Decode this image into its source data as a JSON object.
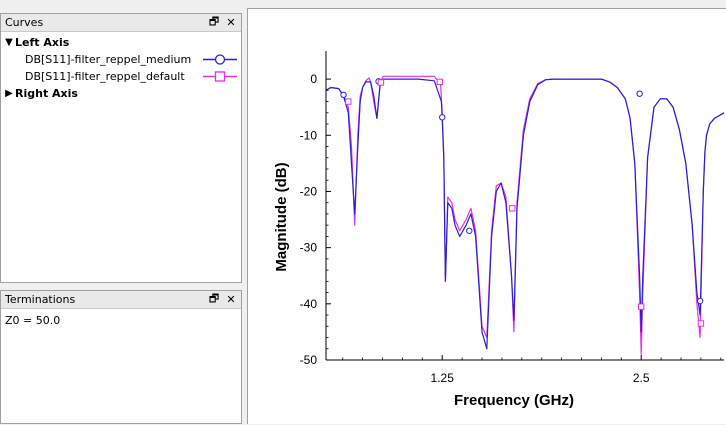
{
  "curves_panel": {
    "title": "Curves",
    "groups": [
      {
        "label": "Left Axis",
        "items": [
          {
            "label": "DB[S11]-filter_reppel_medium",
            "color": "#2a1fd0",
            "marker": "circle"
          },
          {
            "label": "DB[S11]-filter_reppel_default",
            "color": "#e030e0",
            "marker": "square"
          }
        ]
      },
      {
        "label": "Right Axis",
        "items": []
      }
    ]
  },
  "terminations_panel": {
    "title": "Terminations",
    "text": "Z0 = 50.0"
  },
  "icons": {
    "restore": "restore-window-icon",
    "close": "close-icon",
    "expand": "expand-arrow-icon"
  },
  "chart_data": {
    "type": "line",
    "xlabel": "Frequency (GHz)",
    "ylabel": "Magnitude (dB)",
    "x_ticks": [
      "1.25",
      "2.5"
    ],
    "y_ticks": [
      "0",
      "-10",
      "-20",
      "-30",
      "-40",
      "-50"
    ],
    "xlim": [
      0.52,
      3.02
    ],
    "ylim": [
      -50,
      5
    ],
    "grid": false,
    "series": [
      {
        "name": "DB[S11]-filter_reppel_medium",
        "color": "#2a1fd0",
        "marker": "circle",
        "x": [
          0.52,
          0.55,
          0.6,
          0.63,
          0.66,
          0.68,
          0.7,
          0.72,
          0.735,
          0.75,
          0.77,
          0.8,
          0.82,
          0.84,
          0.86,
          0.87,
          0.88,
          0.895,
          0.92,
          1.0,
          1.1,
          1.2,
          1.245,
          1.25,
          1.26,
          1.27,
          1.285,
          1.31,
          1.33,
          1.36,
          1.4,
          1.43,
          1.46,
          1.5,
          1.53,
          1.56,
          1.59,
          1.62,
          1.65,
          1.685,
          1.7,
          1.72,
          1.76,
          1.8,
          1.85,
          1.9,
          1.95,
          2.0,
          2.05,
          2.1,
          2.15,
          2.2,
          2.25,
          2.3,
          2.35,
          2.4,
          2.43,
          2.46,
          2.49,
          2.5,
          2.51,
          2.54,
          2.58,
          2.62,
          2.66,
          2.7,
          2.74,
          2.78,
          2.82,
          2.85,
          2.87,
          2.89,
          2.9,
          2.91,
          2.93,
          2.96,
          2.99,
          3.02
        ],
        "y": [
          -2,
          -1.5,
          -1.7,
          -3,
          -6,
          -15,
          -24,
          -12,
          -4,
          -1.5,
          -0.5,
          -0.5,
          -3,
          -7,
          -1,
          -0.3,
          0,
          0,
          0,
          0,
          0,
          -0.3,
          -4,
          -7,
          -14,
          -36,
          -22,
          -23,
          -26,
          -28,
          -26,
          -24,
          -28,
          -45,
          -48,
          -28,
          -20,
          -18.5,
          -22,
          -35,
          -43,
          -23,
          -10,
          -4,
          -1,
          -0.1,
          0,
          0,
          0,
          0,
          0,
          0,
          0,
          -0.5,
          -1.5,
          -3.5,
          -7,
          -15,
          -35,
          -45,
          -35,
          -14,
          -5,
          -3.5,
          -3.5,
          -5,
          -9,
          -15,
          -26,
          -38,
          -42,
          -20,
          -13,
          -10,
          -8,
          -7,
          -6.5,
          -6
        ]
      },
      {
        "name": "DB[S11]-filter_reppel_default",
        "color": "#e030e0",
        "marker": "square",
        "x": [
          0.52,
          0.55,
          0.6,
          0.63,
          0.66,
          0.68,
          0.7,
          0.72,
          0.735,
          0.75,
          0.77,
          0.79,
          0.8,
          0.82,
          0.84,
          0.86,
          0.87,
          0.88,
          0.895,
          0.92,
          1.0,
          1.1,
          1.2,
          1.24,
          1.25,
          1.26,
          1.27,
          1.285,
          1.31,
          1.33,
          1.36,
          1.4,
          1.43,
          1.46,
          1.5,
          1.53,
          1.56,
          1.59,
          1.62,
          1.65,
          1.685,
          1.7,
          1.72,
          1.76,
          1.8,
          1.85,
          1.9,
          1.95,
          2.0,
          2.05,
          2.1,
          2.15,
          2.2,
          2.25,
          2.3,
          2.35,
          2.4,
          2.43,
          2.46,
          2.49,
          2.5,
          2.51,
          2.54,
          2.58,
          2.62,
          2.66,
          2.7,
          2.74,
          2.78,
          2.82,
          2.85,
          2.87,
          2.89,
          2.9,
          2.91,
          2.93,
          2.96,
          2.99,
          3.02
        ],
        "y": [
          -2,
          -1.5,
          -1.7,
          -3,
          -5,
          -12,
          -26,
          -10,
          -3,
          -1.5,
          -0.3,
          0.2,
          -0.5,
          -4,
          -7,
          -1,
          0,
          0.5,
          0.5,
          0.5,
          0.5,
          0.5,
          0.5,
          -1,
          -6,
          -14,
          -36,
          -21,
          -22,
          -25,
          -27,
          -25,
          -23,
          -27,
          -44,
          -46,
          -27,
          -19,
          -18.5,
          -21,
          -35,
          -45,
          -22,
          -9,
          -3.5,
          -0.8,
          -0.1,
          0,
          0,
          0,
          0,
          0,
          0,
          0,
          -0.5,
          -1.5,
          -3.5,
          -7,
          -15,
          -38,
          -49,
          -38,
          -14,
          -5,
          -3.5,
          -3.5,
          -5,
          -9,
          -15,
          -26,
          -40,
          -46,
          -20,
          -13,
          -10,
          -8,
          -7,
          -6.5,
          -6
        ]
      }
    ],
    "markers": [
      {
        "series": 0,
        "x": 0.63,
        "y": -2.8
      },
      {
        "series": 1,
        "x": 0.66,
        "y": -4
      },
      {
        "series": 0,
        "x": 0.85,
        "y": -0.4
      },
      {
        "series": 1,
        "x": 0.865,
        "y": -0.6
      },
      {
        "series": 1,
        "x": 1.235,
        "y": -0.5
      },
      {
        "series": 0,
        "x": 1.25,
        "y": -6.8
      },
      {
        "series": 0,
        "x": 1.42,
        "y": -27
      },
      {
        "series": 1,
        "x": 1.69,
        "y": -23
      },
      {
        "series": 0,
        "x": 2.49,
        "y": -2.6
      },
      {
        "series": 1,
        "x": 2.5,
        "y": -40.5
      },
      {
        "series": 0,
        "x": 2.87,
        "y": -39.5
      },
      {
        "series": 1,
        "x": 2.875,
        "y": -43.5
      }
    ]
  }
}
